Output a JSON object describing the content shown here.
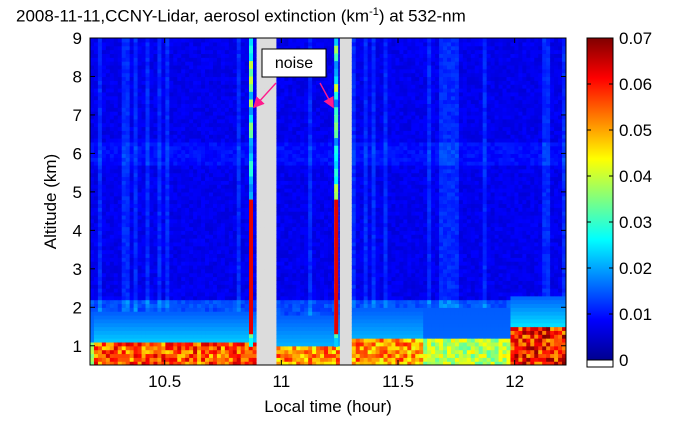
{
  "chart_data": {
    "type": "heatmap",
    "title": {
      "before": "2008-11-11,CCNY-Lidar, aerosol extinction (km",
      "sup": "-1",
      "after": ") at 532-nm"
    },
    "xlabel": "Local time (hour)",
    "ylabel": "Altitude (km)",
    "xlim": [
      10.18,
      12.22
    ],
    "ylim": [
      0.5,
      9.0
    ],
    "x_ticks": [
      10.5,
      11.0,
      11.5,
      12.0
    ],
    "x_tick_labels": [
      "10.5",
      "11",
      "11.5",
      "12"
    ],
    "y_ticks": [
      1,
      2,
      3,
      4,
      5,
      6,
      7,
      8,
      9
    ],
    "y_tick_labels": [
      "1",
      "2",
      "3",
      "4",
      "5",
      "6",
      "7",
      "8",
      "9"
    ],
    "colorbar": {
      "colormap": "jet",
      "range": [
        0,
        0.07
      ],
      "ticks": [
        0,
        0.01,
        0.02,
        0.03,
        0.04,
        0.05,
        0.06,
        0.07
      ],
      "tick_labels": [
        "0",
        "0.01",
        "0.02",
        "0.03",
        "0.04",
        "0.05",
        "0.06",
        "0.07"
      ]
    },
    "no_data_color": "#dcdcdc",
    "data_gaps": [
      [
        10.895,
        10.975
      ],
      [
        11.255,
        11.3
      ]
    ],
    "noise_columns": [
      10.87,
      11.235
    ],
    "boundary_layer": [
      {
        "x": [
          10.2,
          10.9
        ],
        "top_km": 1.1,
        "extinction": 0.065
      },
      {
        "x": [
          10.98,
          11.25
        ],
        "top_km": 1.0,
        "extinction": 0.06
      },
      {
        "x": [
          11.3,
          11.6
        ],
        "top_km": 1.2,
        "extinction": 0.06
      },
      {
        "x": [
          11.6,
          11.98
        ],
        "top_km": 1.2,
        "extinction": 0.045
      },
      {
        "x": [
          11.98,
          12.22
        ],
        "top_km": 1.5,
        "extinction": 0.07
      }
    ],
    "free_troposphere_extinction": 0.006,
    "annotations": [
      {
        "text": "noise",
        "arrows_to": [
          [
            10.87,
            7.2
          ],
          [
            11.235,
            7.2
          ]
        ]
      }
    ]
  }
}
